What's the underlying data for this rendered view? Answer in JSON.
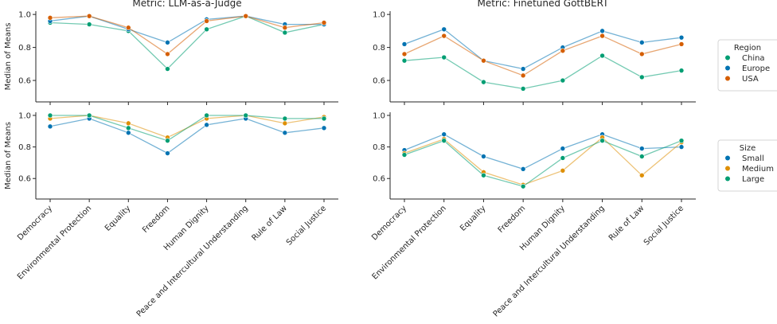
{
  "categories": [
    "Democracy",
    "Environmental Protection",
    "Equality",
    "Freedom",
    "Human Dignity",
    "Peace and Intercultural Understanding",
    "Rule of Law",
    "Social Justice"
  ],
  "chart_data": [
    {
      "type": "line",
      "title": "Metric: LLM-as-a-Judge",
      "ylabel": "Median of Means",
      "ylim": [
        0.47,
        1.02
      ],
      "yticks": [
        0.6,
        0.8,
        1.0
      ],
      "grid": false,
      "series": [
        {
          "name": "China",
          "color": "#009e73",
          "values": [
            0.95,
            0.94,
            0.9,
            0.67,
            0.91,
            0.99,
            0.89,
            0.94
          ]
        },
        {
          "name": "Europe",
          "color": "#0173b2",
          "values": [
            0.96,
            0.99,
            0.91,
            0.83,
            0.97,
            0.99,
            0.94,
            0.94
          ]
        },
        {
          "name": "USA",
          "color": "#d55e00",
          "values": [
            0.98,
            0.99,
            0.92,
            0.76,
            0.96,
            0.99,
            0.92,
            0.95
          ]
        }
      ]
    },
    {
      "type": "line",
      "title": "Metric: Finetuned GottBERT",
      "ylabel": "",
      "ylim": [
        0.47,
        1.02
      ],
      "yticks": [
        0.6,
        0.8,
        1.0
      ],
      "grid": false,
      "series": [
        {
          "name": "China",
          "color": "#009e73",
          "values": [
            0.72,
            0.74,
            0.59,
            0.55,
            0.6,
            0.75,
            0.62,
            0.66
          ]
        },
        {
          "name": "Europe",
          "color": "#0173b2",
          "values": [
            0.82,
            0.91,
            0.72,
            0.67,
            0.8,
            0.9,
            0.83,
            0.86
          ]
        },
        {
          "name": "USA",
          "color": "#d55e00",
          "values": [
            0.76,
            0.87,
            0.72,
            0.63,
            0.78,
            0.87,
            0.76,
            0.82
          ]
        }
      ]
    },
    {
      "type": "line",
      "title": "",
      "ylabel": "Median of Means",
      "ylim": [
        0.47,
        1.02
      ],
      "yticks": [
        0.6,
        0.8,
        1.0
      ],
      "grid": false,
      "series": [
        {
          "name": "Small",
          "color": "#0173b2",
          "values": [
            0.93,
            0.98,
            0.89,
            0.76,
            0.94,
            0.98,
            0.89,
            0.92
          ]
        },
        {
          "name": "Medium",
          "color": "#de8f05",
          "values": [
            0.98,
            1.0,
            0.95,
            0.86,
            0.98,
            1.0,
            0.95,
            0.99
          ]
        },
        {
          "name": "Large",
          "color": "#029e73",
          "values": [
            1.0,
            1.0,
            0.92,
            0.84,
            1.0,
            1.0,
            0.98,
            0.98
          ]
        }
      ]
    },
    {
      "type": "line",
      "title": "",
      "ylabel": "",
      "ylim": [
        0.47,
        1.02
      ],
      "yticks": [
        0.6,
        0.8,
        1.0
      ],
      "grid": false,
      "series": [
        {
          "name": "Small",
          "color": "#0173b2",
          "values": [
            0.78,
            0.88,
            0.74,
            0.66,
            0.79,
            0.88,
            0.79,
            0.8
          ]
        },
        {
          "name": "Medium",
          "color": "#de8f05",
          "values": [
            0.76,
            0.85,
            0.64,
            0.56,
            0.65,
            0.86,
            0.62,
            0.83
          ]
        },
        {
          "name": "Large",
          "color": "#029e73",
          "values": [
            0.75,
            0.84,
            0.62,
            0.55,
            0.73,
            0.84,
            0.74,
            0.84
          ]
        }
      ]
    }
  ],
  "legends": [
    {
      "title": "Region",
      "placement": "right-top",
      "entries": [
        {
          "label": "China",
          "color": "#009e73"
        },
        {
          "label": "Europe",
          "color": "#0173b2"
        },
        {
          "label": "USA",
          "color": "#d55e00"
        }
      ]
    },
    {
      "title": "Size",
      "placement": "right-bottom",
      "entries": [
        {
          "label": "Small",
          "color": "#0173b2"
        },
        {
          "label": "Medium",
          "color": "#de8f05"
        },
        {
          "label": "Large",
          "color": "#029e73"
        }
      ]
    }
  ]
}
